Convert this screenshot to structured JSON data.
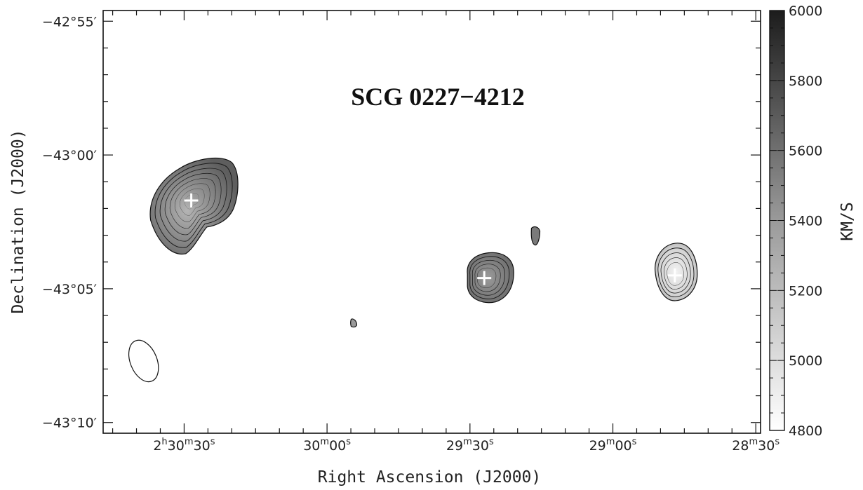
{
  "chart_data": {
    "type": "heatmap",
    "title": "SCG 0227−4212",
    "xlabel": "Right Ascension (J2000)",
    "ylabel": "Declination (J2000)",
    "x_ticks": [
      {
        "ra_sec": 9030,
        "h": "2",
        "m": "30",
        "s": "30",
        "show_h": true,
        "show_m": true,
        "show_s": true
      },
      {
        "ra_sec": 9000,
        "m": "30",
        "s": "00",
        "show_h": false,
        "show_m": true,
        "show_s": true
      },
      {
        "ra_sec": 8970,
        "m": "29",
        "s": "30",
        "show_h": false,
        "show_m": true,
        "show_s": true
      },
      {
        "ra_sec": 8940,
        "m": "29",
        "s": "00",
        "show_h": false,
        "show_m": true,
        "show_s": true
      },
      {
        "ra_sec": 8910,
        "m": "28",
        "s": "30",
        "show_h": false,
        "show_m": true,
        "show_s": true
      }
    ],
    "xlim_ra_sec": [
      9047,
      8909
    ],
    "y_ticks": [
      {
        "dec_arcmin": -2575,
        "label": "−42°55′"
      },
      {
        "dec_arcmin": -2580,
        "label": "−43°00′"
      },
      {
        "dec_arcmin": -2585,
        "label": "−43°05′"
      },
      {
        "dec_arcmin": -2590,
        "label": "−43°10′"
      }
    ],
    "ylim_dec_arcmin": [
      -2590.4,
      -2574.6
    ],
    "colorbar": {
      "label": "KM/S",
      "range": [
        4800,
        6000
      ],
      "ticks": [
        4800,
        5000,
        5200,
        5400,
        5600,
        5800,
        6000
      ]
    },
    "sources": [
      {
        "ra_sec": 9028.5,
        "dec_arcmin": -2581.7,
        "velocity": 5560,
        "cross": true,
        "contour_levels": 8
      },
      {
        "ra_sec": 8967.0,
        "dec_arcmin": -2584.6,
        "velocity": 5600,
        "cross": true,
        "contour_levels": 5
      },
      {
        "ra_sec": 8927.0,
        "dec_arcmin": -2584.5,
        "velocity": 5020,
        "cross": true,
        "contour_levels": 5
      },
      {
        "ra_sec": 8956.5,
        "dec_arcmin": -2583.0,
        "velocity": 5500,
        "cross": false,
        "contour_levels": 1
      },
      {
        "ra_sec": 8994.5,
        "dec_arcmin": -2586.3,
        "velocity": 5500,
        "cross": false,
        "contour_levels": 1
      }
    ],
    "beam": {
      "ra_sec": 9038.5,
      "dec_arcmin": -2587.7
    },
    "grid": false,
    "legend": "colorbar-right"
  }
}
